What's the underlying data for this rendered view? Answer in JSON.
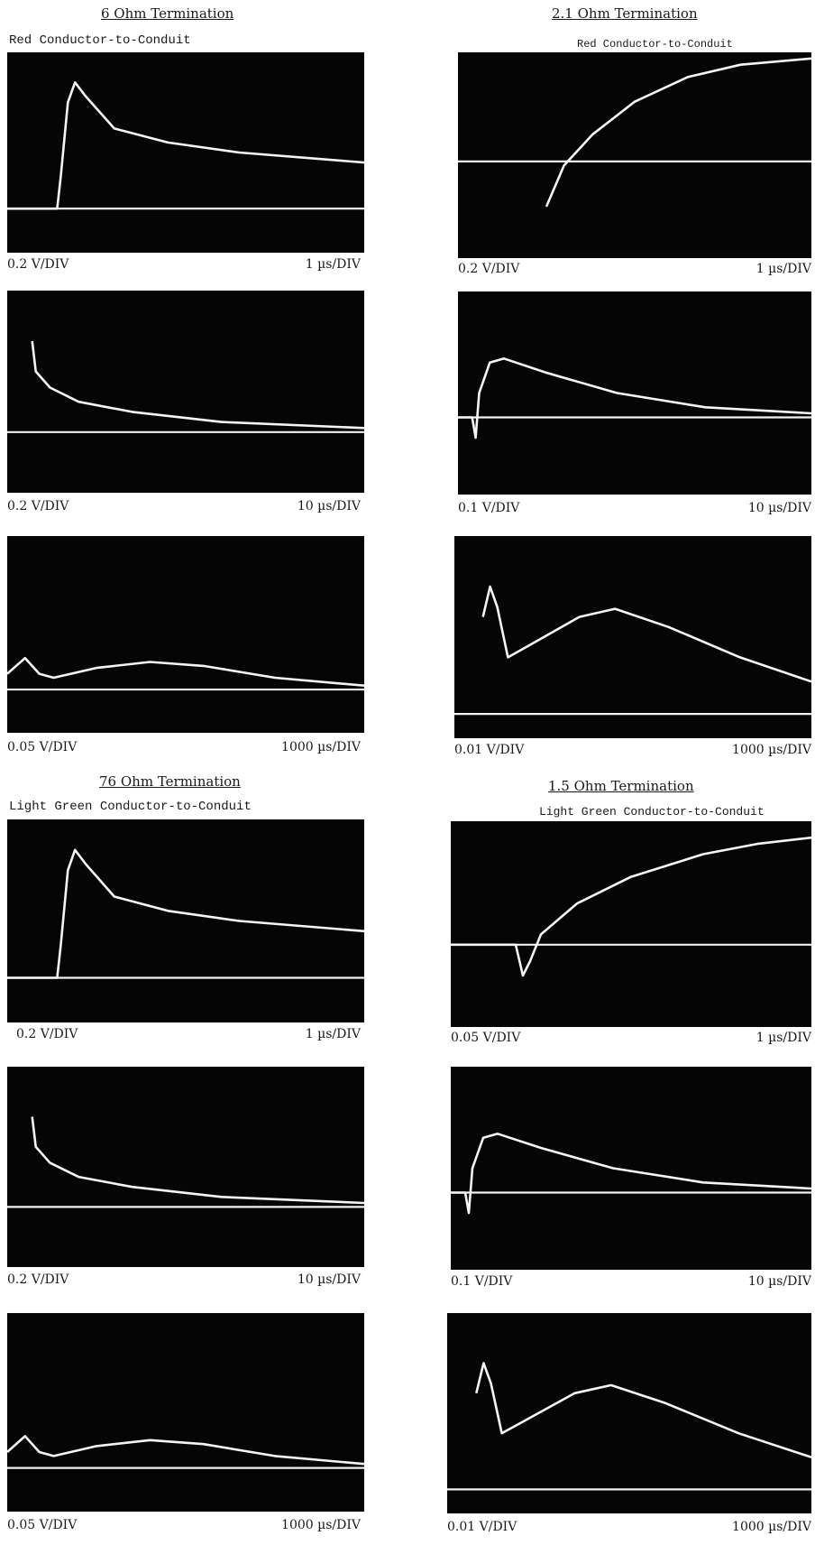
{
  "sections": [
    {
      "left_title": "6 Ohm Termination",
      "left_subtitle": "Red Conductor-to-Conduit",
      "right_title": "2.1 Ohm Termination",
      "right_subtitle": "Red Conductor-to-Conduit"
    },
    {
      "left_title": "76 Ohm Termination",
      "left_subtitle": "Light Green Conductor-to-Conduit",
      "right_title": "1.5 Ohm Termination",
      "right_subtitle": "Light Green Conductor-to-Conduit"
    }
  ],
  "scopes": [
    {
      "vdiv": "0.2 V/DIV",
      "tdiv": "1 µs/DIV",
      "trace": "fast-peak"
    },
    {
      "vdiv": "0.2 V/DIV",
      "tdiv": "1 µs/DIV",
      "trace": "rise"
    },
    {
      "vdiv": "0.2 V/DIV",
      "tdiv": "10 µs/DIV",
      "trace": "decay"
    },
    {
      "vdiv": "0.1 V/DIV",
      "tdiv": "10 µs/DIV",
      "trace": "hump"
    },
    {
      "vdiv": "0.05 V/DIV",
      "tdiv": "1000 µs/DIV",
      "trace": "ripple"
    },
    {
      "vdiv": "0.01 V/DIV",
      "tdiv": "1000 µs/DIV",
      "trace": "double"
    },
    {
      "vdiv": "0.2 V/DIV",
      "tdiv": "1 µs/DIV",
      "trace": "fast-peak"
    },
    {
      "vdiv": "0.05 V/DIV",
      "tdiv": "1 µs/DIV",
      "trace": "dip-rise"
    },
    {
      "vdiv": "0.2 V/DIV",
      "tdiv": "10 µs/DIV",
      "trace": "decay"
    },
    {
      "vdiv": "0.1 V/DIV",
      "tdiv": "10 µs/DIV",
      "trace": "hump"
    },
    {
      "vdiv": "0.05 V/DIV",
      "tdiv": "1000 µs/DIV",
      "trace": "ripple"
    },
    {
      "vdiv": "0.01 V/DIV",
      "tdiv": "1000 µs/DIV",
      "trace": "double"
    }
  ]
}
